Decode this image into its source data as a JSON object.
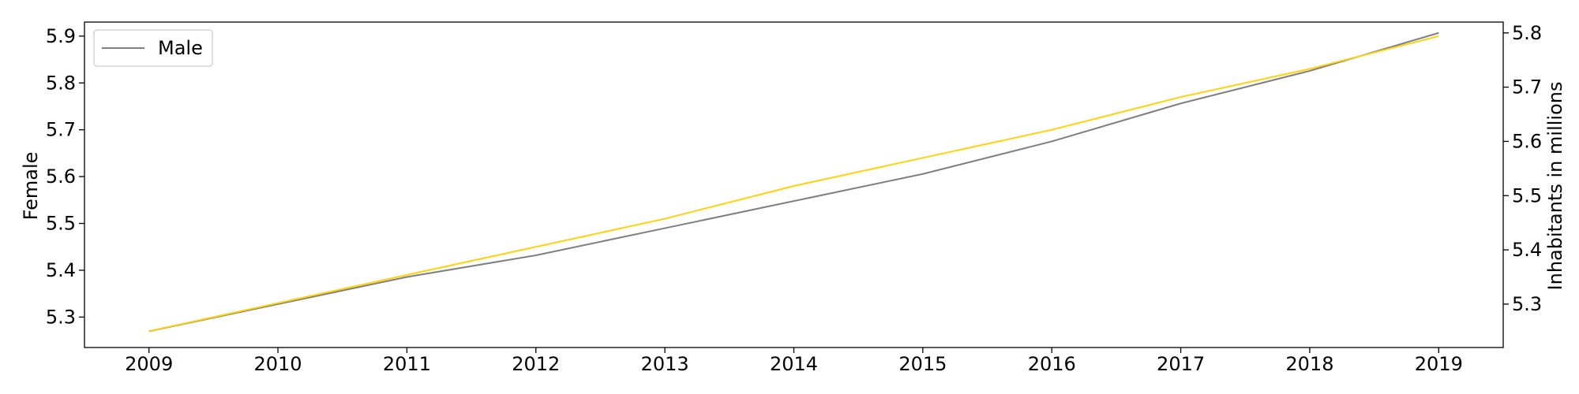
{
  "chart_data": {
    "type": "line",
    "x": [
      2009,
      2010,
      2011,
      2012,
      2013,
      2014,
      2015,
      2016,
      2017,
      2018,
      2019
    ],
    "x_tick_labels": [
      "2009",
      "2010",
      "2011",
      "2012",
      "2013",
      "2014",
      "2015",
      "2016",
      "2017",
      "2018",
      "2019"
    ],
    "series": [
      {
        "name": "Male",
        "axis": "right",
        "color": "#7f7f7f",
        "values": [
          5.25,
          5.3,
          5.35,
          5.39,
          5.44,
          5.49,
          5.54,
          5.6,
          5.67,
          5.73,
          5.8
        ]
      },
      {
        "axis": "left",
        "color": "#ffd20a",
        "values": [
          5.27,
          5.33,
          5.39,
          5.45,
          5.51,
          5.58,
          5.64,
          5.7,
          5.77,
          5.83,
          5.9
        ]
      }
    ],
    "ylabel_left": "Female",
    "ylabel_right": "Inhabitants in millions",
    "ylim_left": [
      5.235,
      5.93
    ],
    "ylim_right": [
      5.22,
      5.82
    ],
    "yticks_left": [
      "5.3",
      "5.4",
      "5.5",
      "5.6",
      "5.7",
      "5.8",
      "5.9"
    ],
    "yticks_right": [
      "5.3",
      "5.4",
      "5.5",
      "5.6",
      "5.7",
      "5.8"
    ],
    "xlim": [
      2008.5,
      2019.5
    ],
    "grid": false,
    "legend_position": "top-left"
  }
}
